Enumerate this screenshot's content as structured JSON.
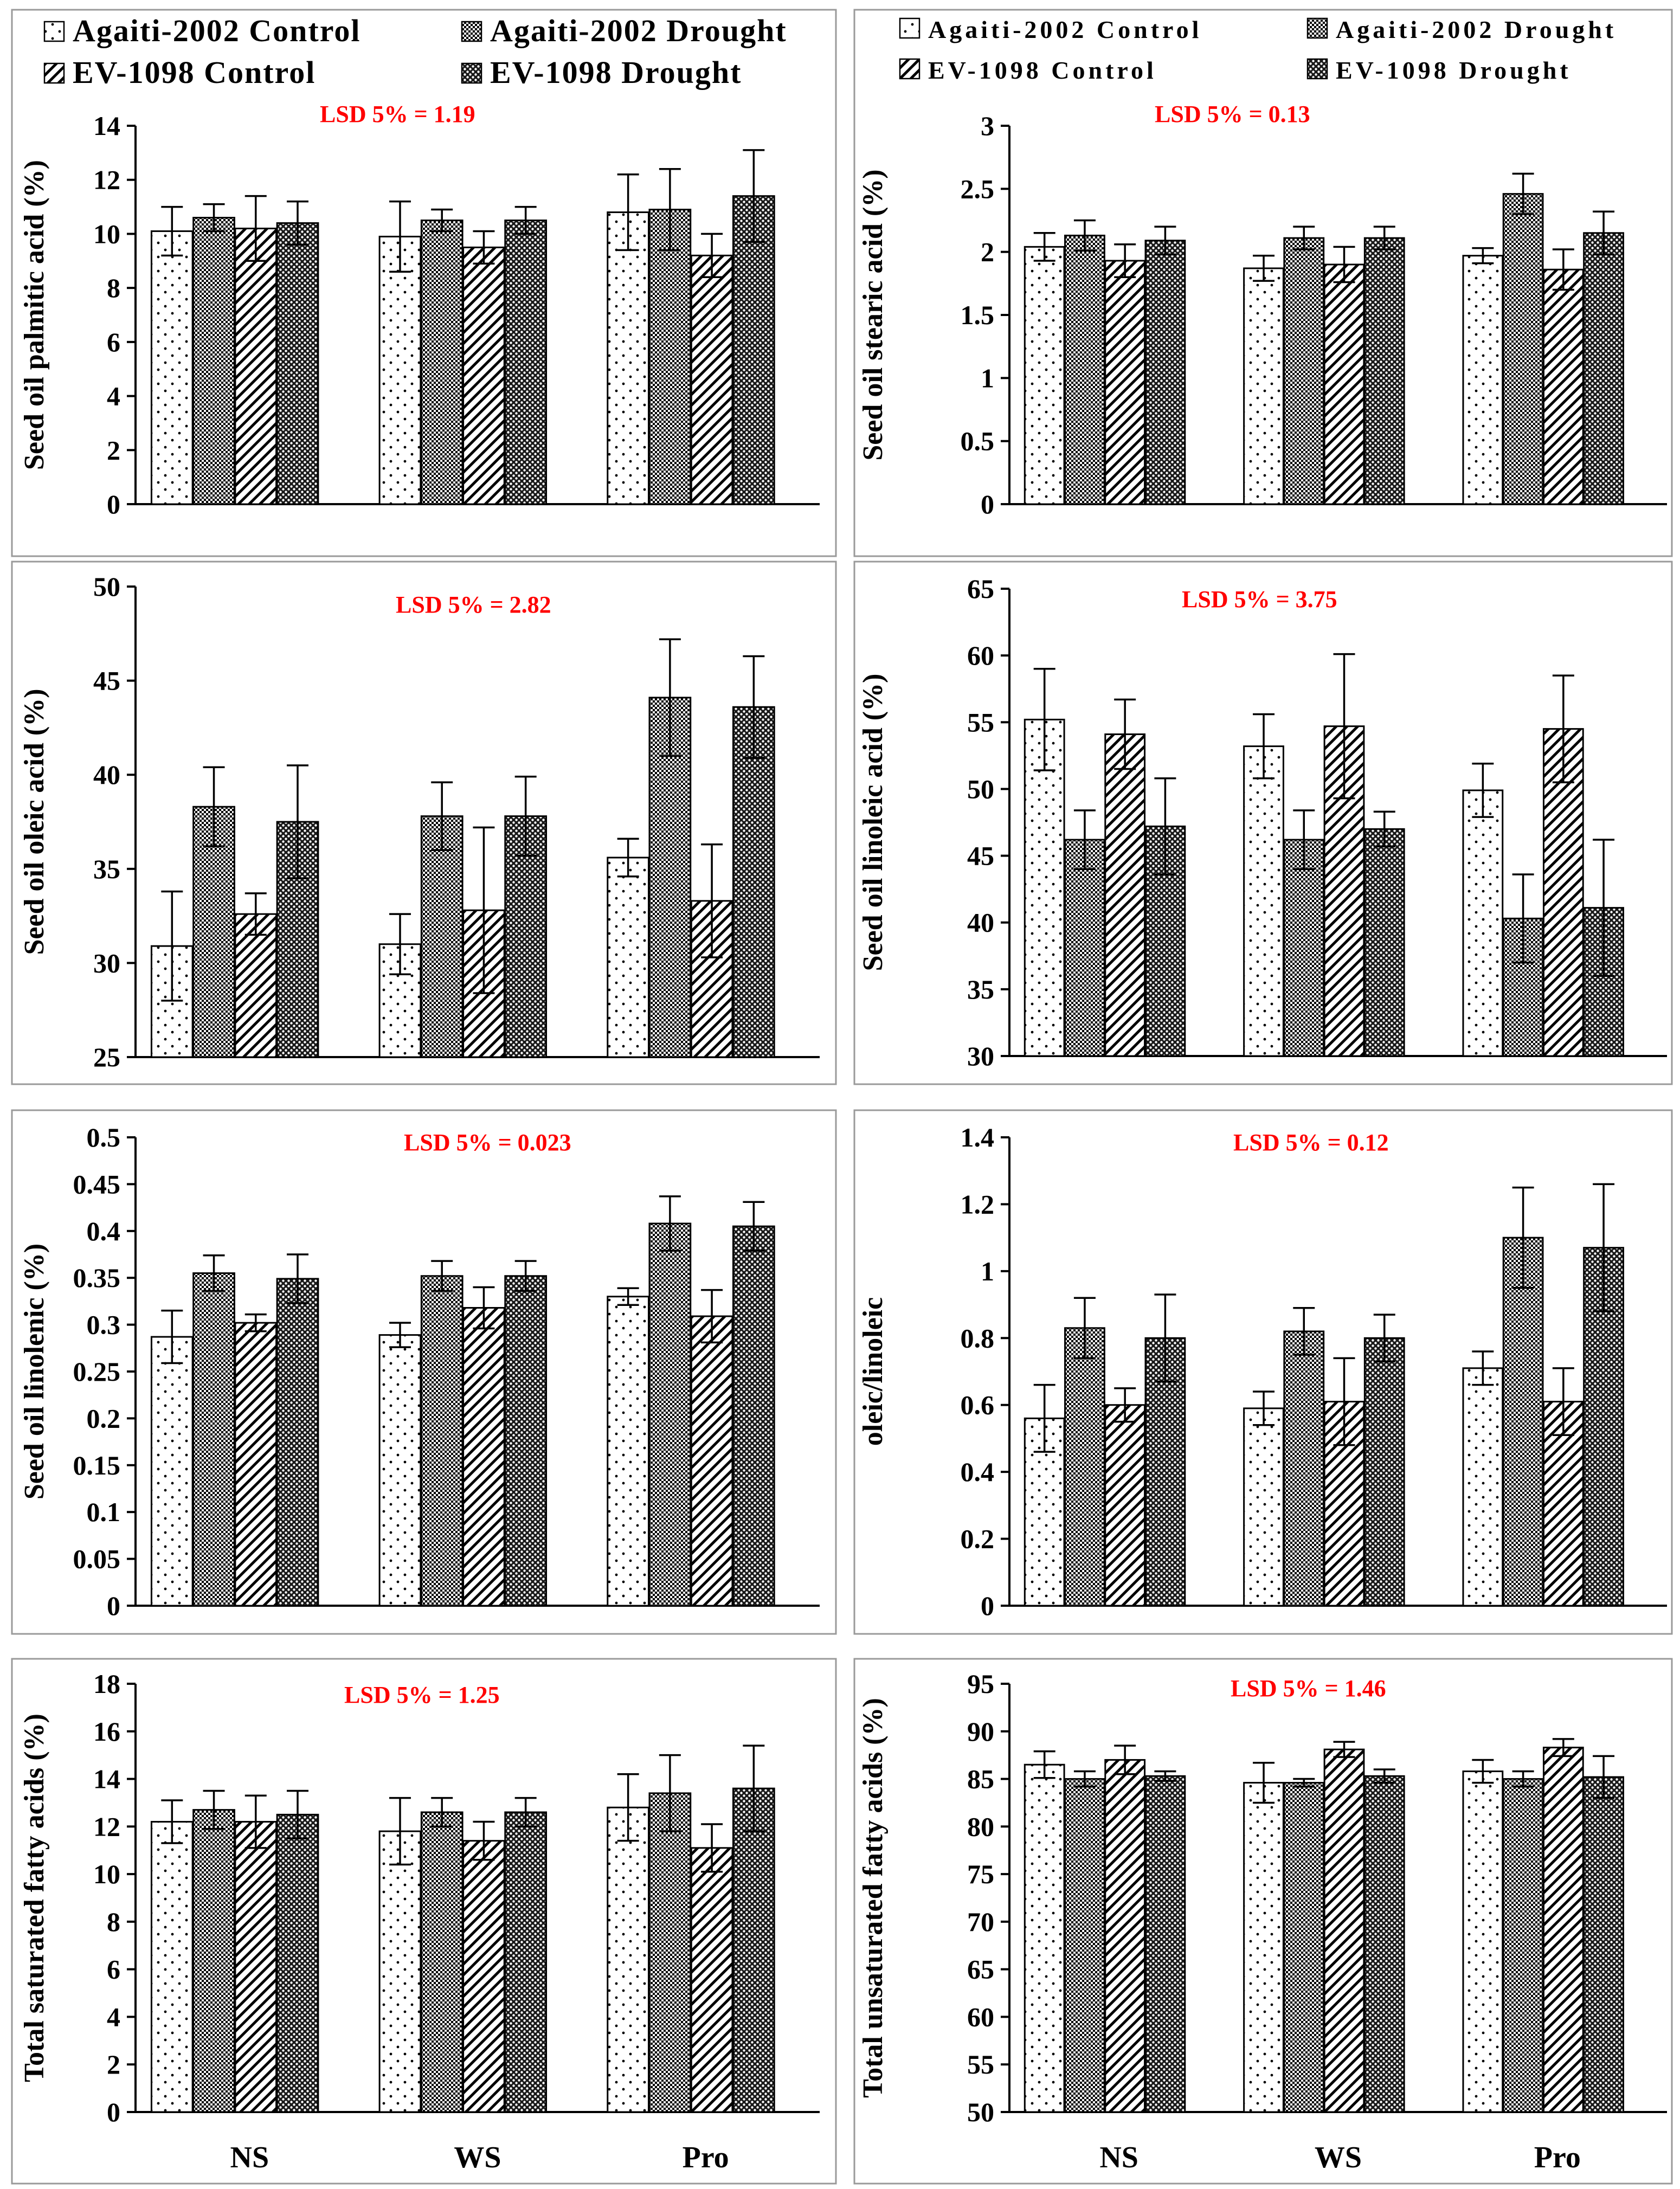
{
  "colors": {
    "lsd": "#ff0000",
    "panel_border": "#9a9a9a",
    "bar_outline": "#000000",
    "fill_agaiti_control": "#ffffff",
    "fill_agaiti_drought": "#8a8a8a",
    "fill_ev_control": "#e0e0e0",
    "fill_ev_drought": "#3a3a3a"
  },
  "legend": {
    "left": [
      "Agaiti-2002 Control",
      "Agaiti-2002 Drought",
      "EV-1098 Control",
      "EV-1098 Drought"
    ],
    "right": [
      "Agaiti-2002 Control",
      "Agaiti-2002 Drought",
      "EV-1098 Control",
      "EV-1098 Drought"
    ]
  },
  "categories": [
    "NS",
    "WS",
    "Pro"
  ],
  "chart_data": [
    {
      "type": "bar",
      "ylabel": "Seed oil palmitic acid (%)",
      "lsd": "LSD 5% = 1.19",
      "ylim": [
        0,
        14
      ],
      "yticks": [
        "0",
        "2",
        "4",
        "6",
        "8",
        "10",
        "12",
        "14"
      ],
      "categories": [
        "NS",
        "WS",
        "Pro"
      ],
      "series": [
        {
          "name": "Agaiti-2002 Control",
          "values": [
            10.1,
            9.9,
            10.8
          ],
          "errors": [
            0.9,
            1.3,
            1.4
          ]
        },
        {
          "name": "Agaiti-2002 Drought",
          "values": [
            10.6,
            10.5,
            10.9
          ],
          "errors": [
            0.5,
            0.4,
            1.5
          ]
        },
        {
          "name": "EV-1098 Control",
          "values": [
            10.2,
            9.5,
            9.2
          ],
          "errors": [
            1.2,
            0.6,
            0.8
          ]
        },
        {
          "name": "EV-1098 Drought",
          "values": [
            10.4,
            10.5,
            11.4
          ],
          "errors": [
            0.8,
            0.5,
            1.7
          ]
        }
      ]
    },
    {
      "type": "bar",
      "ylabel": "Seed oil stearic acid (%)",
      "lsd": "LSD 5% = 0.13",
      "ylim": [
        0,
        3
      ],
      "yticks": [
        "0",
        "0.5",
        "1",
        "1.5",
        "2",
        "2.5",
        "3"
      ],
      "categories": [
        "NS",
        "WS",
        "Pro"
      ],
      "series": [
        {
          "name": "Agaiti-2002 Control",
          "values": [
            2.04,
            1.87,
            1.97
          ],
          "errors": [
            0.11,
            0.1,
            0.06
          ]
        },
        {
          "name": "Agaiti-2002 Drought",
          "values": [
            2.13,
            2.11,
            2.46
          ],
          "errors": [
            0.12,
            0.09,
            0.16
          ]
        },
        {
          "name": "EV-1098 Control",
          "values": [
            1.93,
            1.9,
            1.86
          ],
          "errors": [
            0.13,
            0.14,
            0.16
          ]
        },
        {
          "name": "EV-1098 Drought",
          "values": [
            2.09,
            2.11,
            2.15
          ],
          "errors": [
            0.11,
            0.09,
            0.17
          ]
        }
      ]
    },
    {
      "type": "bar",
      "ylabel": "Seed oil oleic acid (%)",
      "lsd": "LSD 5% = 2.82",
      "ylim": [
        25,
        50
      ],
      "yticks": [
        "25",
        "30",
        "35",
        "40",
        "45",
        "50"
      ],
      "categories": [
        "NS",
        "WS",
        "Pro"
      ],
      "series": [
        {
          "name": "Agaiti-2002 Control",
          "values": [
            30.9,
            31.0,
            35.6
          ],
          "errors": [
            2.9,
            1.6,
            1.0
          ]
        },
        {
          "name": "Agaiti-2002 Drought",
          "values": [
            38.3,
            37.8,
            44.1
          ],
          "errors": [
            2.1,
            1.8,
            3.1
          ]
        },
        {
          "name": "EV-1098 Control",
          "values": [
            32.6,
            32.8,
            33.3
          ],
          "errors": [
            1.1,
            4.4,
            3.0
          ]
        },
        {
          "name": "EV-1098 Drought",
          "values": [
            37.5,
            37.8,
            43.6
          ],
          "errors": [
            3.0,
            2.1,
            2.7
          ]
        }
      ]
    },
    {
      "type": "bar",
      "ylabel": "Seed oil linoleic acid (%)",
      "lsd": "LSD 5% = 3.75",
      "ylim": [
        30,
        65
      ],
      "yticks": [
        "30",
        "35",
        "40",
        "45",
        "50",
        "55",
        "60",
        "65"
      ],
      "categories": [
        "NS",
        "WS",
        "Pro"
      ],
      "series": [
        {
          "name": "Agaiti-2002 Control",
          "values": [
            55.2,
            53.2,
            49.9
          ],
          "errors": [
            3.8,
            2.4,
            2.0
          ]
        },
        {
          "name": "Agaiti-2002 Drought",
          "values": [
            46.2,
            46.2,
            40.3
          ],
          "errors": [
            2.2,
            2.2,
            3.3
          ]
        },
        {
          "name": "EV-1098 Control",
          "values": [
            54.1,
            54.7,
            54.5
          ],
          "errors": [
            2.6,
            5.4,
            4.0
          ]
        },
        {
          "name": "EV-1098 Drought",
          "values": [
            47.2,
            47.0,
            41.1
          ],
          "errors": [
            3.6,
            1.3,
            5.1
          ]
        }
      ]
    },
    {
      "type": "bar",
      "ylabel": "Seed oil linolenic (%)",
      "lsd": "LSD 5% = 0.023",
      "ylim": [
        0,
        0.5
      ],
      "yticks": [
        "0",
        "0.05",
        "0.1",
        "0.15",
        "0.2",
        "0.25",
        "0.3",
        "0.35",
        "0.4",
        "0.45",
        "0.5"
      ],
      "categories": [
        "NS",
        "WS",
        "Pro"
      ],
      "series": [
        {
          "name": "Agaiti-2002 Control",
          "values": [
            0.287,
            0.289,
            0.33
          ],
          "errors": [
            0.028,
            0.013,
            0.009
          ]
        },
        {
          "name": "Agaiti-2002 Drought",
          "values": [
            0.355,
            0.352,
            0.408
          ],
          "errors": [
            0.019,
            0.016,
            0.029
          ]
        },
        {
          "name": "EV-1098 Control",
          "values": [
            0.302,
            0.318,
            0.309
          ],
          "errors": [
            0.009,
            0.022,
            0.028
          ]
        },
        {
          "name": "EV-1098 Drought",
          "values": [
            0.349,
            0.352,
            0.405
          ],
          "errors": [
            0.026,
            0.016,
            0.026
          ]
        }
      ]
    },
    {
      "type": "bar",
      "ylabel": "oleic/linoleic",
      "lsd": "LSD 5% = 0.12",
      "ylim": [
        0,
        1.4
      ],
      "yticks": [
        "0",
        "0.2",
        "0.4",
        "0.6",
        "0.8",
        "1",
        "1.2",
        "1.4"
      ],
      "categories": [
        "NS",
        "WS",
        "Pro"
      ],
      "series": [
        {
          "name": "Agaiti-2002 Control",
          "values": [
            0.56,
            0.59,
            0.71
          ],
          "errors": [
            0.1,
            0.05,
            0.05
          ]
        },
        {
          "name": "Agaiti-2002 Drought",
          "values": [
            0.83,
            0.82,
            1.1
          ],
          "errors": [
            0.09,
            0.07,
            0.15
          ]
        },
        {
          "name": "EV-1098 Control",
          "values": [
            0.6,
            0.61,
            0.61
          ],
          "errors": [
            0.05,
            0.13,
            0.1
          ]
        },
        {
          "name": "EV-1098 Drought",
          "values": [
            0.8,
            0.8,
            1.07
          ],
          "errors": [
            0.13,
            0.07,
            0.19
          ]
        }
      ]
    },
    {
      "type": "bar",
      "ylabel": "Total saturated fatty acids (%)",
      "lsd": "LSD 5% = 1.25",
      "ylim": [
        0,
        18
      ],
      "yticks": [
        "0",
        "2",
        "4",
        "6",
        "8",
        "10",
        "12",
        "14",
        "16",
        "18"
      ],
      "categories": [
        "NS",
        "WS",
        "Pro"
      ],
      "xlabels_visible": true,
      "series": [
        {
          "name": "Agaiti-2002 Control",
          "values": [
            12.2,
            11.8,
            12.8
          ],
          "errors": [
            0.9,
            1.4,
            1.4
          ]
        },
        {
          "name": "Agaiti-2002 Drought",
          "values": [
            12.7,
            12.6,
            13.4
          ],
          "errors": [
            0.8,
            0.6,
            1.6
          ]
        },
        {
          "name": "EV-1098 Control",
          "values": [
            12.2,
            11.4,
            11.1
          ],
          "errors": [
            1.1,
            0.8,
            1.0
          ]
        },
        {
          "name": "EV-1098 Drought",
          "values": [
            12.5,
            12.6,
            13.6
          ],
          "errors": [
            1.0,
            0.6,
            1.8
          ]
        }
      ]
    },
    {
      "type": "bar",
      "ylabel": "Total unsaturated fatty acids (%)",
      "lsd": "LSD 5% = 1.46",
      "ylim": [
        50,
        95
      ],
      "yticks": [
        "50",
        "55",
        "60",
        "65",
        "70",
        "75",
        "80",
        "85",
        "90",
        "95"
      ],
      "categories": [
        "NS",
        "WS",
        "Pro"
      ],
      "xlabels_visible": true,
      "series": [
        {
          "name": "Agaiti-2002 Control",
          "values": [
            86.5,
            84.6,
            85.8
          ],
          "errors": [
            1.4,
            2.1,
            1.2
          ]
        },
        {
          "name": "Agaiti-2002 Drought",
          "values": [
            85.0,
            84.6,
            85.0
          ],
          "errors": [
            0.8,
            0.4,
            0.8
          ]
        },
        {
          "name": "EV-1098 Control",
          "values": [
            87.0,
            88.1,
            88.3
          ],
          "errors": [
            1.5,
            0.8,
            0.9
          ]
        },
        {
          "name": "EV-1098 Drought",
          "values": [
            85.3,
            85.3,
            85.2
          ],
          "errors": [
            0.5,
            0.7,
            2.2
          ]
        }
      ]
    }
  ]
}
